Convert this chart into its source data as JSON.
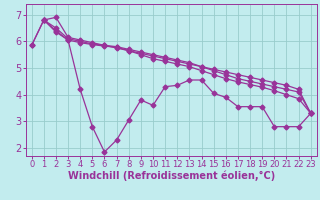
{
  "title": "",
  "xlabel": "Windchill (Refroidissement éolien,°C)",
  "ylabel": "",
  "background_color": "#c2ecee",
  "line_color": "#993399",
  "grid_color": "#99cccc",
  "xlim": [
    -0.5,
    23.5
  ],
  "ylim": [
    1.7,
    7.4
  ],
  "yticks": [
    2,
    3,
    4,
    5,
    6,
    7
  ],
  "xticks": [
    0,
    1,
    2,
    3,
    4,
    5,
    6,
    7,
    8,
    9,
    10,
    11,
    12,
    13,
    14,
    15,
    16,
    17,
    18,
    19,
    20,
    21,
    22,
    23
  ],
  "lines": [
    {
      "x": [
        0,
        1,
        2,
        3,
        4,
        5,
        6,
        7,
        8,
        9,
        10,
        11,
        12,
        13,
        14,
        15,
        16,
        17,
        18,
        19,
        20,
        21,
        22,
        23
      ],
      "y": [
        5.85,
        6.8,
        6.9,
        6.15,
        6.05,
        5.95,
        5.85,
        5.75,
        5.65,
        5.55,
        5.45,
        5.35,
        5.25,
        5.15,
        5.05,
        4.95,
        4.85,
        4.75,
        4.65,
        4.55,
        4.45,
        4.35,
        4.2,
        3.3
      ]
    },
    {
      "x": [
        1,
        2,
        3,
        4,
        5,
        6,
        7,
        8,
        9,
        10,
        11,
        12,
        13,
        14,
        15,
        16,
        17,
        18,
        19,
        20,
        21,
        22,
        23
      ],
      "y": [
        6.8,
        6.5,
        6.1,
        6.0,
        5.9,
        5.85,
        5.8,
        5.7,
        5.6,
        5.5,
        5.4,
        5.3,
        5.2,
        5.05,
        4.9,
        4.75,
        4.6,
        4.5,
        4.4,
        4.3,
        4.2,
        4.1,
        3.3
      ]
    },
    {
      "x": [
        0,
        1,
        2,
        3,
        4,
        5,
        6,
        7,
        8,
        9,
        10,
        11,
        12,
        13,
        14,
        15,
        16,
        17,
        18,
        19,
        20,
        21,
        22,
        23
      ],
      "y": [
        5.85,
        6.8,
        6.4,
        6.05,
        4.2,
        2.8,
        1.85,
        2.3,
        3.05,
        3.8,
        3.6,
        4.3,
        4.35,
        4.55,
        4.55,
        4.05,
        3.9,
        3.55,
        3.55,
        3.55,
        2.8,
        2.8,
        2.8,
        3.3
      ]
    },
    {
      "x": [
        1,
        2,
        3,
        4,
        5,
        6,
        7,
        8,
        9,
        10,
        11,
        12,
        13,
        14,
        15,
        16,
        17,
        18,
        19,
        20,
        21,
        22,
        23
      ],
      "y": [
        6.8,
        6.35,
        6.05,
        5.95,
        5.88,
        5.82,
        5.78,
        5.65,
        5.5,
        5.35,
        5.25,
        5.15,
        5.05,
        4.9,
        4.75,
        4.6,
        4.48,
        4.38,
        4.28,
        4.15,
        4.0,
        3.85,
        3.3
      ]
    }
  ],
  "xlabel_fontsize": 7,
  "tick_fontsize_x": 6,
  "tick_fontsize_y": 7,
  "linewidth": 0.9,
  "markersize": 2.5
}
